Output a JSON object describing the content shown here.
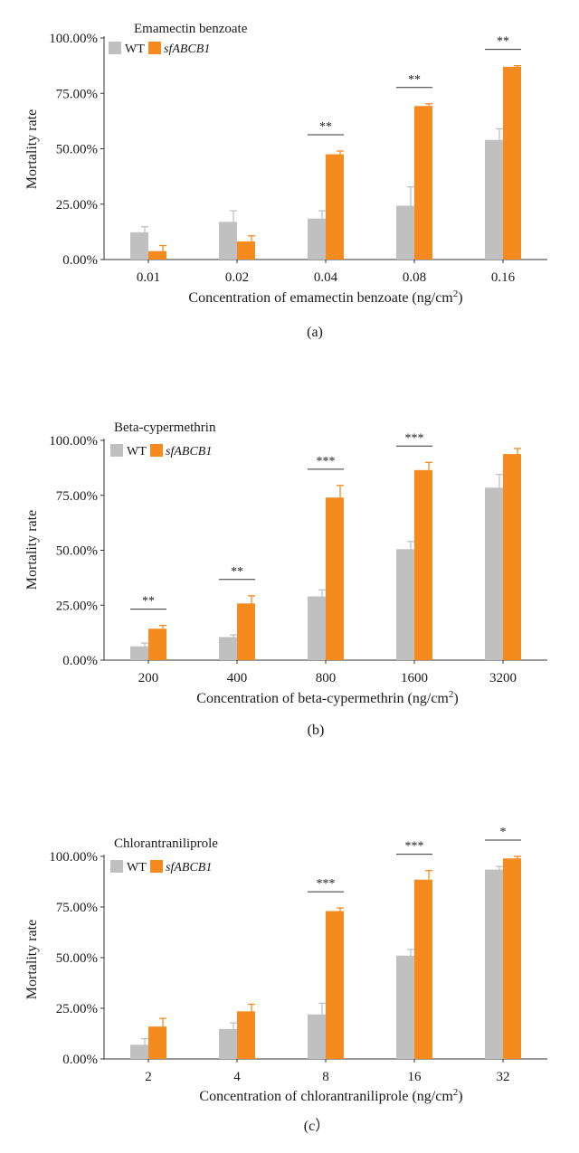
{
  "colors": {
    "wt": "#c0c0c0",
    "mutant": "#f58a1f",
    "axis": "#333333",
    "text": "#1a1a1a"
  },
  "chart_data": [
    {
      "type": "bar",
      "title": "Emamectin benzoate",
      "categories": [
        "0.01",
        "0.02",
        "0.04",
        "0.08",
        "0.16"
      ],
      "series": [
        {
          "name": "WT",
          "values": [
            12.3,
            17.0,
            18.5,
            24.3,
            54.0
          ],
          "errors": [
            2.5,
            5.0,
            3.5,
            8.5,
            5.0
          ]
        },
        {
          "name": "sfABCB1",
          "values": [
            3.8,
            8.2,
            47.5,
            69.3,
            87.0
          ],
          "errors": [
            2.5,
            2.5,
            1.5,
            1.0,
            0.5
          ]
        }
      ],
      "significance": [
        "",
        "",
        "**",
        "**",
        "**"
      ],
      "xlabel": "Concentration of emamectin benzoate (ng/cm",
      "xlabel_sup": "2",
      "xlabel_end": ")",
      "ylabel": "Mortality rate",
      "yticks": [
        "0.00%",
        "25.00%",
        "50.00%",
        "75.00%",
        "100.00%"
      ],
      "ylim": [
        0,
        100
      ],
      "legend_position": "top-left",
      "panel_label": "(a)"
    },
    {
      "type": "bar",
      "title": "Beta-cypermethrin",
      "categories": [
        "200",
        "400",
        "800",
        "1600",
        "3200"
      ],
      "series": [
        {
          "name": "WT",
          "values": [
            6.3,
            10.5,
            29.0,
            50.5,
            78.5
          ],
          "errors": [
            1.5,
            1.0,
            3.0,
            3.5,
            6.0
          ]
        },
        {
          "name": "sfABCB1",
          "values": [
            14.3,
            25.8,
            74.0,
            86.5,
            93.8
          ],
          "errors": [
            1.5,
            3.5,
            5.5,
            3.5,
            2.5
          ]
        }
      ],
      "significance": [
        "**",
        "**",
        "***",
        "***",
        ""
      ],
      "xlabel": "Concentration of beta-cypermethrin (ng/cm",
      "xlabel_sup": "2",
      "xlabel_end": ")",
      "ylabel": "Mortality rate",
      "yticks": [
        "0.00%",
        "25.00%",
        "50.00%",
        "75.00%",
        "100.00%"
      ],
      "ylim": [
        0,
        100
      ],
      "legend_position": "top-left",
      "panel_label": "(b)"
    },
    {
      "type": "bar",
      "title": "Chlorantraniliprole",
      "categories": [
        "2",
        "4",
        "8",
        "16",
        "32"
      ],
      "series": [
        {
          "name": "WT",
          "values": [
            7.0,
            14.8,
            22.0,
            51.0,
            93.5
          ],
          "errors": [
            3.0,
            3.0,
            5.5,
            3.0,
            1.5
          ]
        },
        {
          "name": "sfABCB1",
          "values": [
            16.0,
            23.5,
            73.0,
            88.5,
            99.0
          ],
          "errors": [
            4.0,
            3.5,
            1.5,
            4.5,
            1.0
          ]
        }
      ],
      "significance": [
        "",
        "",
        "***",
        "***",
        "*"
      ],
      "xlabel": "Concentration of chlorantraniliprole (ng/cm",
      "xlabel_sup": "2",
      "xlabel_end": ")",
      "ylabel": "Mortality rate",
      "yticks": [
        "0.00%",
        "25.00%",
        "50.00%",
        "75.00%",
        "100.00%"
      ],
      "ylim": [
        0,
        100
      ],
      "legend_position": "top-left",
      "panel_label": "(c）"
    }
  ]
}
